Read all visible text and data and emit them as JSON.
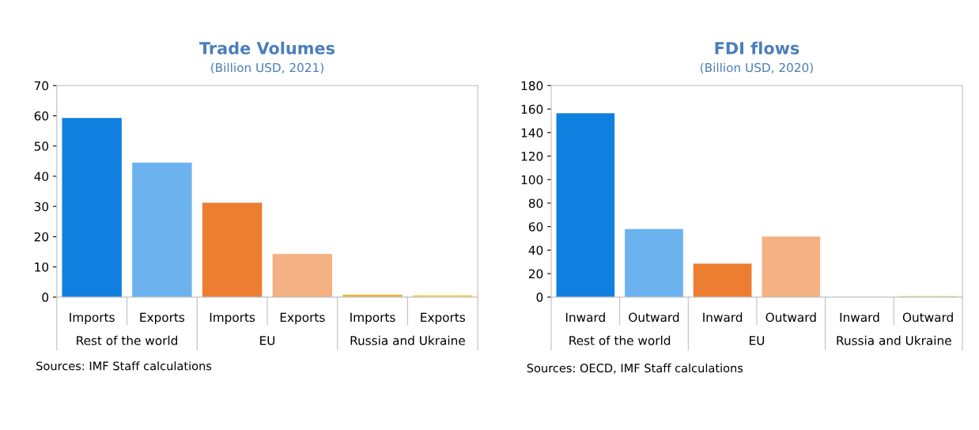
{
  "chart_data": [
    {
      "type": "bar",
      "title": "Trade Volumes",
      "subtitle": "(Billion USD, 2021)",
      "categories": [
        "Imports",
        "Exports",
        "Imports",
        "Exports",
        "Imports",
        "Exports"
      ],
      "values": [
        59.3,
        44.5,
        31.2,
        14.3,
        0.8,
        0.7
      ],
      "colors": [
        "#1080e0",
        "#6cb2ee",
        "#ed7d31",
        "#f4b183",
        "#e8b830",
        "#f5d76e"
      ],
      "ylim": [
        0,
        70
      ],
      "yticks": [
        0,
        10,
        20,
        30,
        40,
        50,
        60,
        70
      ],
      "grid": false,
      "legend": false,
      "annotations": [
        "Rest of the world",
        "EU",
        "Russia and Ukraine",
        "Sources: IMF Staff calculations"
      ]
    },
    {
      "type": "bar",
      "title": "FDI flows",
      "subtitle": "(Billion USD, 2020)",
      "categories": [
        "Inward",
        "Outward",
        "Inward",
        "Outward",
        "Inward",
        "Outward"
      ],
      "values": [
        156.5,
        58,
        28.5,
        51.5,
        0,
        1
      ],
      "colors": [
        "#1080e0",
        "#6cb2ee",
        "#ed7d31",
        "#f4b183",
        "#e8b830",
        "#f5d76e"
      ],
      "ylim": [
        0,
        180
      ],
      "yticks": [
        0,
        20,
        40,
        60,
        80,
        100,
        120,
        140,
        160,
        180
      ],
      "grid": false,
      "legend": false,
      "annotations": [
        "Rest of the world",
        "EU",
        "Russia and Ukraine",
        "Sources: OECD, IMF Staff calculations"
      ]
    }
  ]
}
